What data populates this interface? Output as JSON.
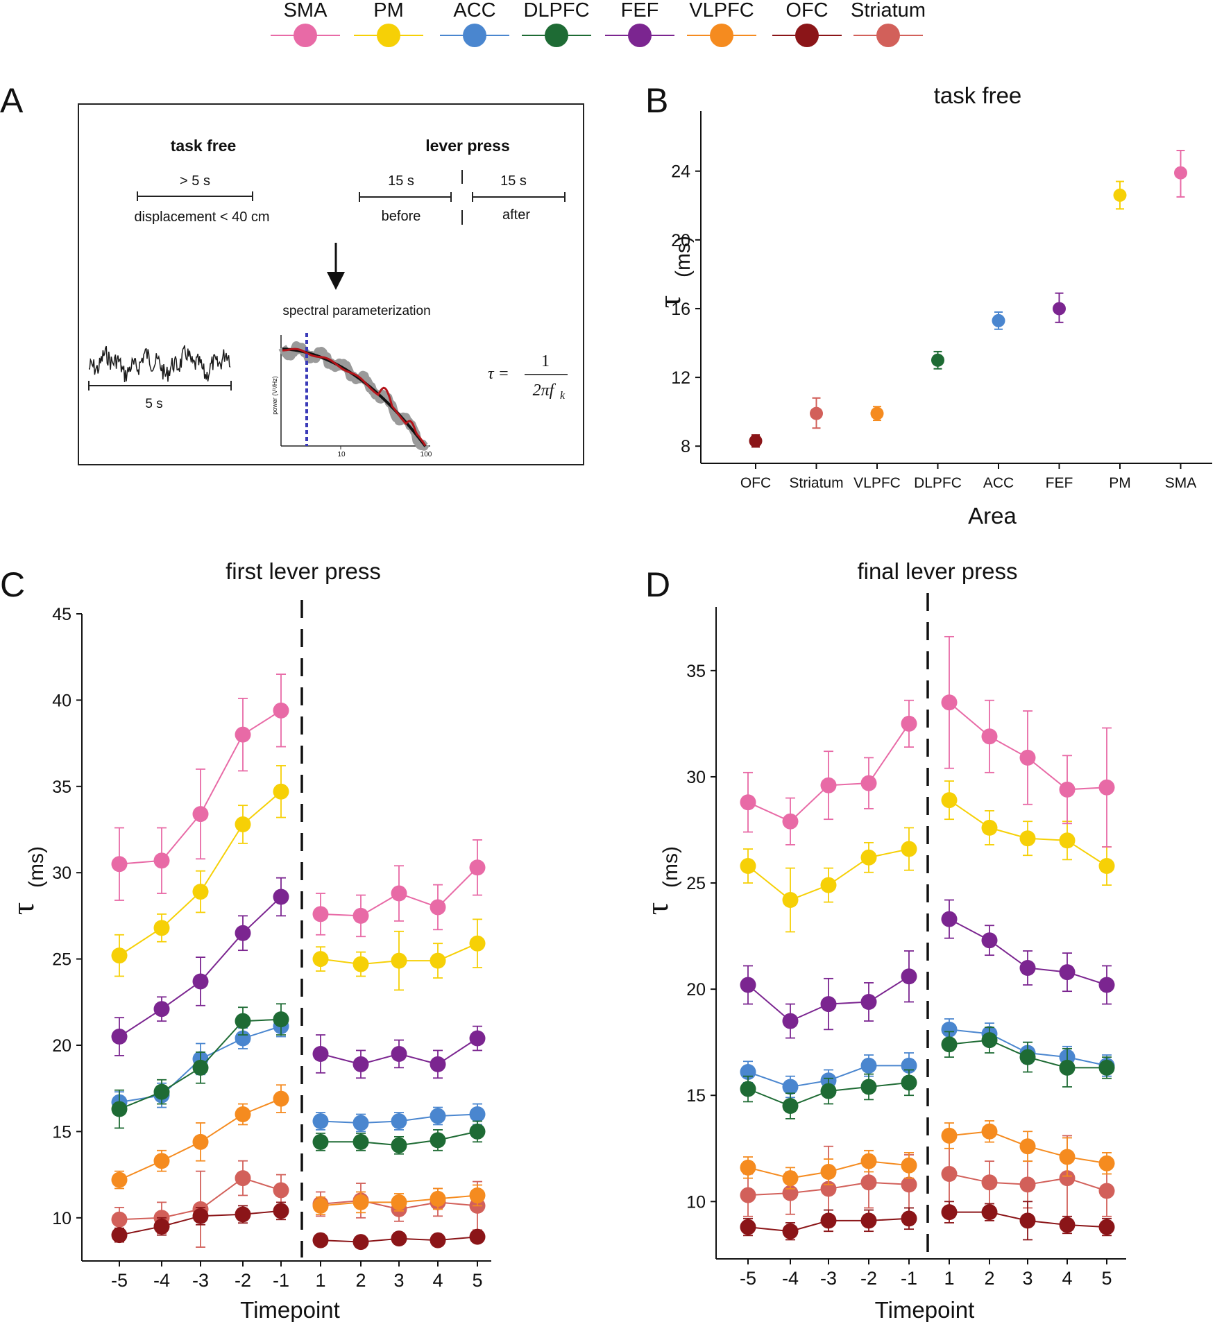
{
  "legend": [
    {
      "label": "SMA",
      "color": "#e86aa6"
    },
    {
      "label": "PM",
      "color": "#f6d006"
    },
    {
      "label": "ACC",
      "color": "#4a86cf"
    },
    {
      "label": "DLPFC",
      "color": "#1e6b34"
    },
    {
      "label": "FEF",
      "color": "#7b2590"
    },
    {
      "label": "VLPFC",
      "color": "#f58b1f"
    },
    {
      "label": "OFC",
      "color": "#8b1518"
    },
    {
      "label": "Striatum",
      "color": "#d2605a"
    }
  ],
  "panelA": {
    "letter": "A",
    "task_free_title": "task free",
    "task_free_duration": "> 5 s",
    "task_free_criterion": "displacement < 40 cm",
    "lever_press_title": "lever press",
    "before_duration": "15 s",
    "before_label": "before",
    "after_duration": "15 s",
    "after_label": "after",
    "spectral_label": "spectral parameterization",
    "trace_scale": "5 s",
    "psd_ylabel": "power (V²/Hz)",
    "psd_xtick_10": "10",
    "psd_xtick_100": "100",
    "formula_lhs": "τ =",
    "formula_num": "1",
    "formula_den": "2πf",
    "formula_sub": "k"
  },
  "chart_data": [
    {
      "panel": "B",
      "type": "scatter",
      "title": "task free",
      "xlabel": "Area",
      "ylabel_symbol": "τ",
      "ylabel_unit": "(ms)",
      "categories": [
        "OFC",
        "Striatum",
        "VLPFC",
        "DLPFC",
        "ACC",
        "FEF",
        "PM",
        "SMA"
      ],
      "colors": [
        "#8b1518",
        "#d2605a",
        "#f58b1f",
        "#1e6b34",
        "#4a86cf",
        "#7b2590",
        "#f6d006",
        "#e86aa6"
      ],
      "values": [
        8.3,
        9.9,
        9.9,
        13.0,
        15.3,
        16.0,
        22.6,
        23.9
      ],
      "err_low": [
        0.35,
        0.85,
        0.4,
        0.5,
        0.5,
        0.8,
        0.8,
        1.4
      ],
      "err_high": [
        0.35,
        0.9,
        0.4,
        0.5,
        0.5,
        0.9,
        0.8,
        1.3
      ],
      "yticks": [
        "8",
        "12",
        "16",
        "20",
        "24"
      ],
      "ylim": [
        7.0,
        27.5
      ]
    },
    {
      "panel": "C",
      "type": "line",
      "title": "first lever press",
      "xlabel": "Timepoint",
      "ylabel_symbol": "τ",
      "ylabel_unit": "(ms)",
      "x": [
        "-5",
        "-4",
        "-3",
        "-2",
        "-1",
        "1",
        "2",
        "3",
        "4",
        "5"
      ],
      "yticks": [
        "10",
        "15",
        "20",
        "25",
        "30",
        "35",
        "40",
        "45"
      ],
      "ylim": [
        7.5,
        45.0
      ],
      "series": [
        {
          "name": "Striatum",
          "color": "#d2605a",
          "before": [
            9.9,
            10.0,
            10.5,
            12.3,
            11.6
          ],
          "before_err": [
            0.7,
            0.9,
            2.2,
            1.0,
            0.9
          ],
          "after": [
            10.8,
            11.0,
            10.5,
            10.9,
            10.7
          ],
          "after_err": [
            0.7,
            1.0,
            0.7,
            0.8,
            1.4
          ]
        },
        {
          "name": "OFC",
          "color": "#8b1518",
          "before": [
            9.0,
            9.5,
            10.1,
            10.2,
            10.4
          ],
          "before_err": [
            0.4,
            0.5,
            0.5,
            0.5,
            0.5
          ],
          "after": [
            8.7,
            8.6,
            8.8,
            8.7,
            8.9
          ],
          "after_err": [
            0.3,
            0.3,
            0.3,
            0.3,
            0.3
          ]
        },
        {
          "name": "VLPFC",
          "color": "#f58b1f",
          "before": [
            12.2,
            13.3,
            14.4,
            16.0,
            16.9
          ],
          "before_err": [
            0.5,
            0.6,
            1.1,
            0.6,
            0.8
          ],
          "after": [
            10.7,
            10.9,
            10.9,
            11.1,
            11.3
          ],
          "after_err": [
            0.5,
            0.6,
            0.5,
            0.6,
            0.6
          ]
        },
        {
          "name": "ACC",
          "color": "#4a86cf",
          "before": [
            16.7,
            17.1,
            19.2,
            20.4,
            21.1
          ],
          "before_err": [
            0.6,
            0.7,
            0.9,
            0.6,
            0.6
          ],
          "after": [
            15.6,
            15.5,
            15.6,
            15.9,
            16.0
          ],
          "after_err": [
            0.5,
            0.5,
            0.5,
            0.5,
            0.6
          ]
        },
        {
          "name": "DLPFC",
          "color": "#1e6b34",
          "before": [
            16.3,
            17.3,
            18.7,
            21.4,
            21.5
          ],
          "before_err": [
            1.1,
            0.7,
            0.9,
            0.8,
            0.9
          ],
          "after": [
            14.4,
            14.4,
            14.2,
            14.5,
            15.0
          ],
          "after_err": [
            0.5,
            0.5,
            0.5,
            0.6,
            0.6
          ]
        },
        {
          "name": "FEF",
          "color": "#7b2590",
          "before": [
            20.5,
            22.1,
            23.7,
            26.5,
            28.6
          ],
          "before_err": [
            1.1,
            0.7,
            1.4,
            1.0,
            1.1
          ],
          "after": [
            19.5,
            18.9,
            19.5,
            18.9,
            20.4
          ],
          "after_err": [
            1.1,
            0.8,
            0.8,
            0.8,
            0.7
          ]
        },
        {
          "name": "PM",
          "color": "#f6d006",
          "before": [
            25.2,
            26.8,
            28.9,
            32.8,
            34.7
          ],
          "before_err": [
            1.2,
            0.8,
            1.2,
            1.1,
            1.5
          ],
          "after": [
            25.0,
            24.7,
            24.9,
            24.9,
            25.9
          ],
          "after_err": [
            0.7,
            0.7,
            1.7,
            1.0,
            1.4
          ]
        },
        {
          "name": "SMA",
          "color": "#e86aa6",
          "before": [
            30.5,
            30.7,
            33.4,
            38.0,
            39.4
          ],
          "before_err": [
            2.1,
            1.9,
            2.6,
            2.1,
            2.1
          ],
          "after": [
            27.6,
            27.5,
            28.8,
            28.0,
            30.3
          ],
          "after_err": [
            1.2,
            1.2,
            1.6,
            1.3,
            1.6
          ]
        }
      ]
    },
    {
      "panel": "D",
      "type": "line",
      "title": "final lever press",
      "xlabel": "Timepoint",
      "ylabel_symbol": "τ",
      "ylabel_unit": "(ms)",
      "x": [
        "-5",
        "-4",
        "-3",
        "-2",
        "-1",
        "1",
        "2",
        "3",
        "4",
        "5"
      ],
      "yticks": [
        "10",
        "15",
        "20",
        "25",
        "30",
        "35"
      ],
      "ylim": [
        7.3,
        38.0
      ],
      "series": [
        {
          "name": "Striatum",
          "color": "#d2605a",
          "before": [
            10.3,
            10.4,
            10.6,
            10.9,
            10.8
          ],
          "before_err": [
            1.0,
            1.0,
            2.0,
            1.2,
            1.4
          ],
          "after": [
            11.3,
            10.9,
            10.8,
            11.1,
            10.5
          ],
          "after_err": [
            1.7,
            1.0,
            1.1,
            2.0,
            1.2
          ]
        },
        {
          "name": "OFC",
          "color": "#8b1518",
          "before": [
            8.8,
            8.6,
            9.1,
            9.1,
            9.2
          ],
          "before_err": [
            0.4,
            0.4,
            0.5,
            0.5,
            0.5
          ],
          "after": [
            9.5,
            9.5,
            9.1,
            8.9,
            8.8
          ],
          "after_err": [
            0.5,
            0.4,
            0.9,
            0.4,
            0.4
          ]
        },
        {
          "name": "VLPFC",
          "color": "#f58b1f",
          "before": [
            11.6,
            11.1,
            11.4,
            11.9,
            11.7
          ],
          "before_err": [
            0.5,
            0.5,
            0.6,
            0.5,
            0.6
          ],
          "after": [
            13.1,
            13.3,
            12.6,
            12.1,
            11.8
          ],
          "after_err": [
            0.6,
            0.5,
            0.7,
            0.9,
            0.5
          ]
        },
        {
          "name": "ACC",
          "color": "#4a86cf",
          "before": [
            16.1,
            15.4,
            15.7,
            16.4,
            16.4
          ],
          "before_err": [
            0.5,
            0.5,
            0.5,
            0.5,
            0.6
          ],
          "after": [
            18.1,
            17.9,
            17.0,
            16.8,
            16.4
          ],
          "after_err": [
            0.5,
            0.5,
            0.5,
            0.5,
            0.5
          ]
        },
        {
          "name": "DLPFC",
          "color": "#1e6b34",
          "before": [
            15.3,
            14.5,
            15.2,
            15.4,
            15.6
          ],
          "before_err": [
            0.6,
            0.6,
            0.6,
            0.6,
            0.6
          ],
          "after": [
            17.4,
            17.6,
            16.8,
            16.3,
            16.3
          ],
          "after_err": [
            0.6,
            0.6,
            0.7,
            0.9,
            0.5
          ]
        },
        {
          "name": "FEF",
          "color": "#7b2590",
          "before": [
            20.2,
            18.5,
            19.3,
            19.4,
            20.6
          ],
          "before_err": [
            0.9,
            0.8,
            1.2,
            0.9,
            1.2
          ],
          "after": [
            23.3,
            22.3,
            21.0,
            20.8,
            20.2
          ],
          "after_err": [
            0.9,
            0.7,
            0.8,
            0.9,
            0.9
          ]
        },
        {
          "name": "PM",
          "color": "#f6d006",
          "before": [
            25.8,
            24.2,
            24.9,
            26.2,
            26.6
          ],
          "before_err": [
            0.8,
            1.5,
            0.8,
            0.7,
            1.0
          ],
          "after": [
            28.9,
            27.6,
            27.1,
            27.0,
            25.8
          ],
          "after_err": [
            0.9,
            0.8,
            0.8,
            0.9,
            0.9
          ]
        },
        {
          "name": "SMA",
          "color": "#e86aa6",
          "before": [
            28.8,
            27.9,
            29.6,
            29.7,
            32.5
          ],
          "before_err": [
            1.4,
            1.1,
            1.6,
            1.2,
            1.1
          ],
          "after": [
            33.5,
            31.9,
            30.9,
            29.4,
            29.5
          ],
          "after_err": [
            3.1,
            1.7,
            2.2,
            1.6,
            2.8
          ]
        }
      ]
    }
  ]
}
